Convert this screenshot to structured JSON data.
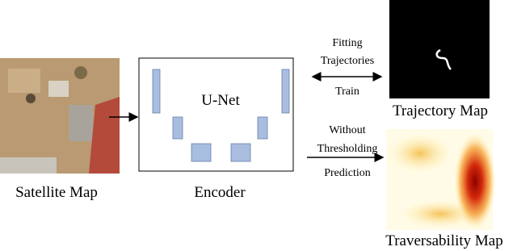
{
  "satellite": {
    "label": "Satellite Map"
  },
  "encoder": {
    "model": "U-Net",
    "label": "Encoder"
  },
  "train_arrow": {
    "lines": [
      "Fitting",
      "Trajectories"
    ],
    "action": "Train"
  },
  "trajectory": {
    "label": "Trajectory Map"
  },
  "predict_arrow": {
    "lines": [
      "Without",
      "Thresholding"
    ],
    "action": "Prediction"
  },
  "traversability": {
    "label": "Traversability Map"
  }
}
